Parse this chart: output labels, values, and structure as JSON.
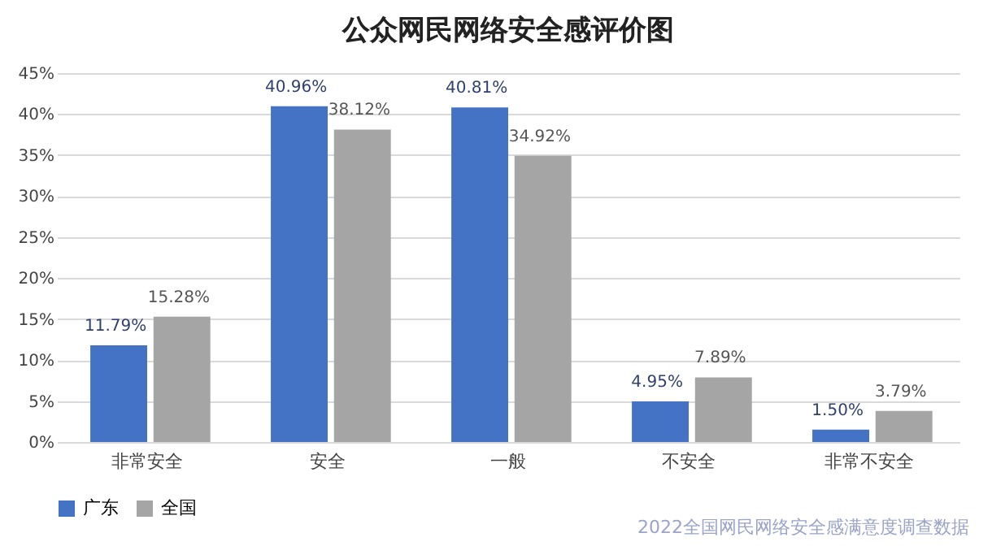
{
  "chart_data": {
    "type": "bar",
    "title": "公众网民网络安全感评价图",
    "categories": [
      "非常安全",
      "安全",
      "一般",
      "不安全",
      "非常不安全"
    ],
    "series": [
      {
        "name": "广东",
        "color": "#4472c4",
        "values": [
          11.79,
          40.96,
          40.81,
          4.95,
          1.5
        ],
        "value_labels": [
          "11.79%",
          "40.96%",
          "40.81%",
          "4.95%",
          "1.50%"
        ]
      },
      {
        "name": "全国",
        "color": "#a5a5a5",
        "values": [
          15.28,
          38.12,
          34.92,
          7.89,
          3.79
        ],
        "value_labels": [
          "15.28%",
          "38.12%",
          "34.92%",
          "7.89%",
          "3.79%"
        ]
      }
    ],
    "ylim": [
      0,
      45
    ],
    "yticks": [
      {
        "value": 0,
        "label": "0%"
      },
      {
        "value": 5,
        "label": "5%"
      },
      {
        "value": 10,
        "label": "10%"
      },
      {
        "value": 15,
        "label": "15%"
      },
      {
        "value": 20,
        "label": "20%"
      },
      {
        "value": 25,
        "label": "25%"
      },
      {
        "value": 30,
        "label": "30%"
      },
      {
        "value": 35,
        "label": "35%"
      },
      {
        "value": 40,
        "label": "40%"
      },
      {
        "value": 45,
        "label": "45%"
      }
    ],
    "grid": "y",
    "legend": "bottom",
    "annotations": [
      "2022全国网民网络安全感满意度调查数据"
    ]
  }
}
